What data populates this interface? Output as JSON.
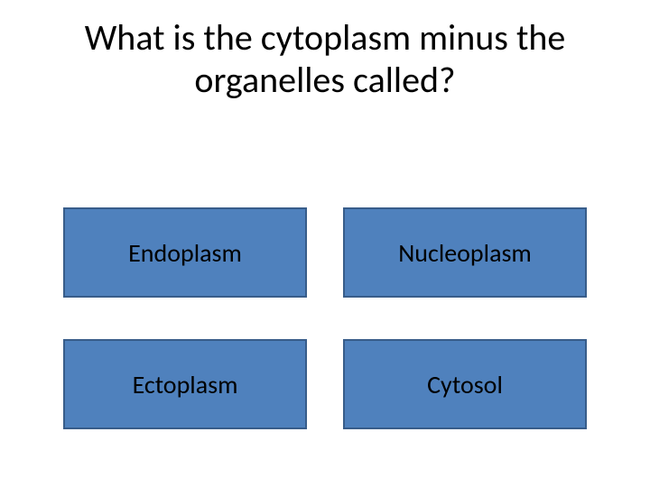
{
  "background_color": "#ffffff",
  "question": {
    "text": "What is the cytoplasm minus the organelles called?",
    "font_size": 40,
    "font_weight": 400,
    "color": "#000000"
  },
  "options": {
    "fill_color": "#4f81bd",
    "border_color": "#385d8a",
    "border_width": 2,
    "text_color": "#000000",
    "font_size": 28,
    "items": [
      {
        "label": "Endoplasm"
      },
      {
        "label": "Nucleoplasm"
      },
      {
        "label": "Ectoplasm"
      },
      {
        "label": "Cytosol"
      }
    ]
  }
}
